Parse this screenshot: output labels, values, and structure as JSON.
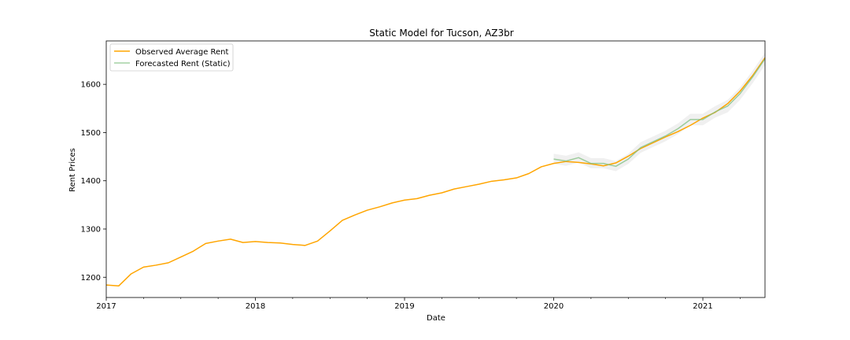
{
  "chart_data": {
    "type": "line",
    "title": "Static Model for Tucson, AZ3br",
    "xlabel": "Date",
    "ylabel": "Rent Prices",
    "xlim": [
      2017.0,
      2021.4167
    ],
    "ylim": [
      1158,
      1690
    ],
    "x_ticks": [
      {
        "value": 2017,
        "label": "2017"
      },
      {
        "value": 2018,
        "label": "2018"
      },
      {
        "value": 2019,
        "label": "2019"
      },
      {
        "value": 2020,
        "label": "2020"
      },
      {
        "value": 2021,
        "label": "2021"
      }
    ],
    "y_ticks": [
      {
        "value": 1200,
        "label": "1200"
      },
      {
        "value": 1300,
        "label": "1300"
      },
      {
        "value": 1400,
        "label": "1400"
      },
      {
        "value": 1500,
        "label": "1500"
      },
      {
        "value": 1600,
        "label": "1600"
      }
    ],
    "legend": {
      "position": "top-left"
    },
    "series": [
      {
        "name": "Observed Average Rent",
        "color": "#ffa500",
        "x": [
          2017.0,
          2017.0833,
          2017.1667,
          2017.25,
          2017.3333,
          2017.4167,
          2017.5,
          2017.5833,
          2017.6667,
          2017.75,
          2017.8333,
          2017.9167,
          2018.0,
          2018.0833,
          2018.1667,
          2018.25,
          2018.3333,
          2018.4167,
          2018.5,
          2018.5833,
          2018.6667,
          2018.75,
          2018.8333,
          2018.9167,
          2019.0,
          2019.0833,
          2019.1667,
          2019.25,
          2019.3333,
          2019.4167,
          2019.5,
          2019.5833,
          2019.6667,
          2019.75,
          2019.8333,
          2019.9167,
          2020.0,
          2020.0833,
          2020.1667,
          2020.25,
          2020.3333,
          2020.4167,
          2020.5,
          2020.5833,
          2020.6667,
          2020.75,
          2020.8333,
          2020.9167,
          2021.0,
          2021.0833,
          2021.1667,
          2021.25,
          2021.3333,
          2021.4167
        ],
        "values": [
          1184,
          1182,
          1207,
          1221,
          1225,
          1230,
          1242,
          1254,
          1270,
          1275,
          1279,
          1272,
          1274,
          1272,
          1271,
          1268,
          1266,
          1275,
          1296,
          1318,
          1329,
          1339,
          1346,
          1354,
          1360,
          1363,
          1370,
          1375,
          1383,
          1388,
          1393,
          1399,
          1402,
          1406,
          1415,
          1429,
          1436,
          1440,
          1438,
          1435,
          1431,
          1437,
          1451,
          1467,
          1479,
          1491,
          1502,
          1515,
          1530,
          1542,
          1560,
          1586,
          1618,
          1655
        ]
      },
      {
        "name": "Forecasted Rent (Static)",
        "color": "#7fbf7f",
        "x": [
          2020.0,
          2020.0833,
          2020.1667,
          2020.25,
          2020.3333,
          2020.4167,
          2020.5,
          2020.5833,
          2020.6667,
          2020.75,
          2020.8333,
          2020.9167,
          2021.0,
          2021.0833,
          2021.1667,
          2021.25,
          2021.3333,
          2021.4167
        ],
        "values": [
          1445,
          1441,
          1448,
          1436,
          1436,
          1430,
          1445,
          1469,
          1481,
          1493,
          1508,
          1527,
          1527,
          1543,
          1555,
          1581,
          1615,
          1653
        ],
        "ci_lower": [
          1435,
          1431,
          1438,
          1426,
          1426,
          1420,
          1435,
          1458,
          1470,
          1482,
          1497,
          1515,
          1515,
          1531,
          1542,
          1568,
          1602,
          1640
        ],
        "ci_upper": [
          1456,
          1452,
          1459,
          1447,
          1447,
          1441,
          1456,
          1480,
          1492,
          1504,
          1519,
          1539,
          1539,
          1555,
          1568,
          1594,
          1628,
          1666
        ]
      }
    ]
  }
}
